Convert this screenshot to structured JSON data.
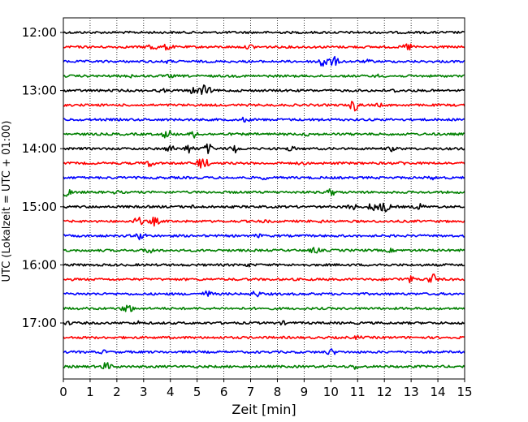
{
  "chart_data": {
    "type": "line",
    "title": "",
    "xlabel": "Zeit  [min]",
    "ylabel": "UTC (Lokalzeit = UTC + 01:00)",
    "xlim": [
      0,
      15
    ],
    "xticks": [
      "0",
      "1",
      "2",
      "3",
      "4",
      "5",
      "6",
      "7",
      "8",
      "9",
      "10",
      "11",
      "12",
      "13",
      "14",
      "15"
    ],
    "ytick_labels": [
      {
        "row": 0,
        "label": "12:00"
      },
      {
        "row": 4,
        "label": "13:00"
      },
      {
        "row": 8,
        "label": "14:00"
      },
      {
        "row": 12,
        "label": "15:00"
      },
      {
        "row": 16,
        "label": "16:00"
      },
      {
        "row": 20,
        "label": "17:00"
      }
    ],
    "grid": "vertical dotted at each minute",
    "trace_interval_min": 15,
    "colors": [
      "#000000",
      "#ff0000",
      "#0000ff",
      "#008000"
    ],
    "traces": [
      {
        "start": "12:00",
        "color": "#000000",
        "events": []
      },
      {
        "start": "12:15",
        "color": "#ff0000",
        "events": [
          [
            3.3,
            6
          ],
          [
            3.9,
            5
          ],
          [
            7.0,
            4
          ],
          [
            12.9,
            6
          ]
        ]
      },
      {
        "start": "12:30",
        "color": "#0000ff",
        "events": [
          [
            3.9,
            3
          ],
          [
            9.7,
            10
          ],
          [
            10.1,
            7
          ],
          [
            11.4,
            3
          ]
        ]
      },
      {
        "start": "12:45",
        "color": "#008000",
        "events": [
          [
            2.6,
            3
          ],
          [
            4.0,
            3
          ],
          [
            11.8,
            3
          ]
        ]
      },
      {
        "start": "13:00",
        "color": "#000000",
        "events": [
          [
            3.7,
            3
          ],
          [
            4.9,
            6
          ],
          [
            5.3,
            8
          ],
          [
            12.4,
            3
          ]
        ]
      },
      {
        "start": "13:15",
        "color": "#ff0000",
        "events": [
          [
            10.9,
            8
          ],
          [
            11.8,
            3
          ]
        ]
      },
      {
        "start": "13:30",
        "color": "#0000ff",
        "events": [
          [
            6.8,
            4
          ],
          [
            9.5,
            3
          ]
        ]
      },
      {
        "start": "13:45",
        "color": "#008000",
        "events": [
          [
            3.9,
            7
          ],
          [
            4.9,
            5
          ],
          [
            9.1,
            3
          ]
        ]
      },
      {
        "start": "14:00",
        "color": "#000000",
        "events": [
          [
            4.0,
            5
          ],
          [
            4.7,
            6
          ],
          [
            5.4,
            7
          ],
          [
            6.4,
            6
          ],
          [
            8.5,
            4
          ],
          [
            12.3,
            4
          ]
        ]
      },
      {
        "start": "14:15",
        "color": "#ff0000",
        "events": [
          [
            3.2,
            5
          ],
          [
            5.2,
            9
          ],
          [
            8.9,
            3
          ],
          [
            12.7,
            3
          ]
        ]
      },
      {
        "start": "14:30",
        "color": "#0000ff",
        "events": [
          [
            7.5,
            3
          ],
          [
            13.8,
            3
          ]
        ]
      },
      {
        "start": "14:45",
        "color": "#008000",
        "events": [
          [
            0.1,
            7
          ],
          [
            2.0,
            3
          ],
          [
            10.0,
            5
          ]
        ]
      },
      {
        "start": "15:00",
        "color": "#000000",
        "events": [
          [
            4.9,
            3
          ],
          [
            10.8,
            5
          ],
          [
            11.6,
            7
          ],
          [
            12.0,
            8
          ],
          [
            13.3,
            5
          ]
        ]
      },
      {
        "start": "15:15",
        "color": "#ff0000",
        "events": [
          [
            2.8,
            6
          ],
          [
            3.4,
            6
          ],
          [
            7.5,
            3
          ],
          [
            9.7,
            3
          ]
        ]
      },
      {
        "start": "15:30",
        "color": "#0000ff",
        "events": [
          [
            2.9,
            6
          ],
          [
            7.3,
            3
          ]
        ]
      },
      {
        "start": "15:45",
        "color": "#008000",
        "events": [
          [
            3.2,
            5
          ],
          [
            9.4,
            5
          ],
          [
            12.2,
            3
          ]
        ]
      },
      {
        "start": "16:00",
        "color": "#000000",
        "events": [
          [
            6.9,
            3
          ],
          [
            11.8,
            3
          ]
        ]
      },
      {
        "start": "16:15",
        "color": "#ff0000",
        "events": [
          [
            12.5,
            3
          ],
          [
            13.0,
            5
          ],
          [
            13.8,
            8
          ]
        ]
      },
      {
        "start": "16:30",
        "color": "#0000ff",
        "events": [
          [
            5.4,
            5
          ],
          [
            7.2,
            5
          ]
        ]
      },
      {
        "start": "16:45",
        "color": "#008000",
        "events": [
          [
            2.4,
            7
          ]
        ]
      },
      {
        "start": "17:00",
        "color": "#000000",
        "events": [
          [
            0.2,
            3
          ],
          [
            2.8,
            3
          ],
          [
            8.2,
            3
          ]
        ]
      },
      {
        "start": "17:15",
        "color": "#ff0000",
        "events": [
          [
            11.0,
            3
          ]
        ]
      },
      {
        "start": "17:30",
        "color": "#0000ff",
        "events": [
          [
            1.5,
            3
          ],
          [
            10.0,
            5
          ]
        ]
      },
      {
        "start": "17:45",
        "color": "#008000",
        "events": [
          [
            1.6,
            6
          ],
          [
            10.9,
            4
          ]
        ]
      }
    ]
  }
}
